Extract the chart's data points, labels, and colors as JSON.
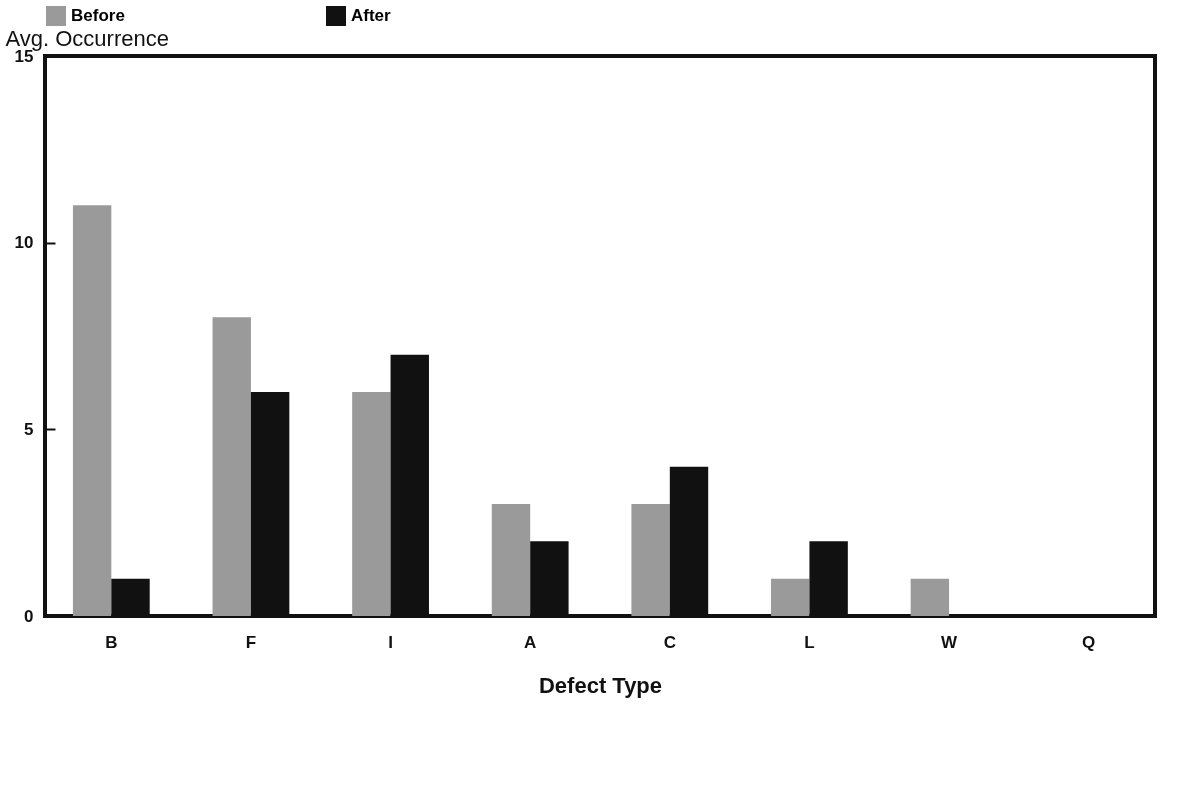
{
  "chart_data": {
    "type": "bar",
    "xlabel": "Defect Type",
    "ylabel": "Avg. Occurrence",
    "categories": [
      "B",
      "F",
      "I",
      "A",
      "C",
      "L",
      "W",
      "Q"
    ],
    "series": [
      {
        "name": "Before",
        "color": "#9a9a9a",
        "values": [
          11,
          8,
          6,
          3,
          3,
          1,
          1,
          0
        ]
      },
      {
        "name": "After",
        "color": "#111111",
        "values": [
          1,
          6,
          7,
          2,
          4,
          2,
          0,
          0
        ]
      }
    ],
    "ylim": [
      0,
      15
    ],
    "yticks": [
      0,
      5,
      10,
      15
    ],
    "grid": false,
    "legend": "top"
  }
}
